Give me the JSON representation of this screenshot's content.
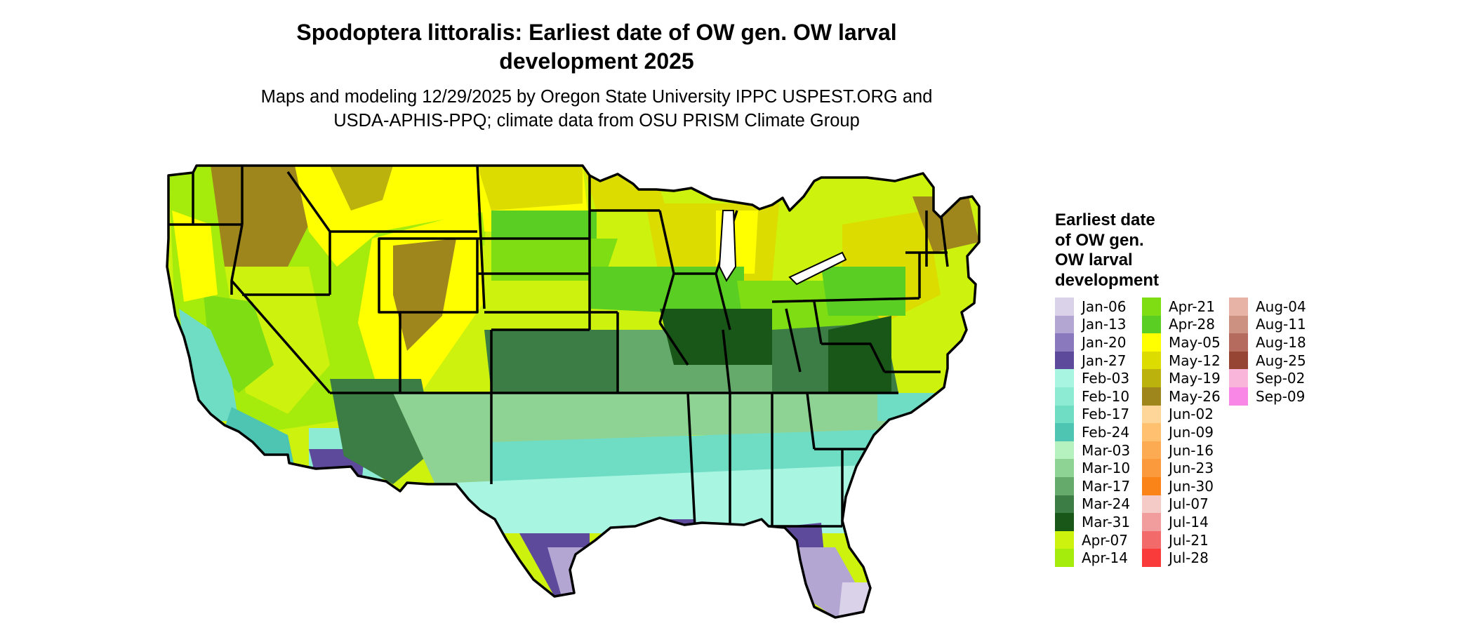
{
  "header": {
    "title_line1": "Spodoptera littoralis: Earliest date of OW gen. OW larval",
    "title_line2": "development 2025",
    "subtitle_line1": "Maps and modeling 12/29/2025 by Oregon State University IPPC USPEST.ORG and",
    "subtitle_line2": "USDA-APHIS-PPQ; climate data from OSU PRISM Climate Group"
  },
  "legend": {
    "title_lines": [
      "Earliest date",
      "of OW gen.",
      "OW larval",
      "development"
    ],
    "columns": [
      [
        {
          "label": "Jan-06",
          "color": "#d9d2e9"
        },
        {
          "label": "Jan-13",
          "color": "#b3a6d2"
        },
        {
          "label": "Jan-20",
          "color": "#8a79bc"
        },
        {
          "label": "Jan-27",
          "color": "#5e4a9b"
        },
        {
          "label": "Feb-03",
          "color": "#a8f5e1"
        },
        {
          "label": "Feb-10",
          "color": "#8cebd2"
        },
        {
          "label": "Feb-17",
          "color": "#6fdcc4"
        },
        {
          "label": "Feb-24",
          "color": "#4ec5b2"
        },
        {
          "label": "Mar-03",
          "color": "#b6f2c0"
        },
        {
          "label": "Mar-10",
          "color": "#8fd394"
        },
        {
          "label": "Mar-17",
          "color": "#65a96b"
        },
        {
          "label": "Mar-24",
          "color": "#3b7d44"
        },
        {
          "label": "Mar-31",
          "color": "#195718"
        },
        {
          "label": "Apr-07",
          "color": "#ccf20e"
        },
        {
          "label": "Apr-14",
          "color": "#a5eb0b"
        }
      ],
      [
        {
          "label": "Apr-21",
          "color": "#7fde13"
        },
        {
          "label": "Apr-28",
          "color": "#5ace22"
        },
        {
          "label": "May-05",
          "color": "#ffff00"
        },
        {
          "label": "May-12",
          "color": "#dcdc00"
        },
        {
          "label": "May-19",
          "color": "#bcb20e"
        },
        {
          "label": "May-26",
          "color": "#9e861c"
        },
        {
          "label": "Jun-02",
          "color": "#ffd699"
        },
        {
          "label": "Jun-09",
          "color": "#ffc070"
        },
        {
          "label": "Jun-16",
          "color": "#fcab52"
        },
        {
          "label": "Jun-23",
          "color": "#fb9a3c"
        },
        {
          "label": "Jun-30",
          "color": "#fb8418"
        },
        {
          "label": "Jul-07",
          "color": "#f5cbc8"
        },
        {
          "label": "Jul-14",
          "color": "#f19d9d"
        },
        {
          "label": "Jul-21",
          "color": "#f26a6a"
        },
        {
          "label": "Jul-28",
          "color": "#fa3b3b"
        }
      ],
      [
        {
          "label": "Aug-04",
          "color": "#e6b3a6"
        },
        {
          "label": "Aug-11",
          "color": "#cc9180"
        },
        {
          "label": "Aug-18",
          "color": "#b56b5e"
        },
        {
          "label": "Aug-25",
          "color": "#964535"
        },
        {
          "label": "Sep-02",
          "color": "#f9b6da"
        },
        {
          "label": "Sep-09",
          "color": "#f987e5"
        }
      ]
    ]
  }
}
